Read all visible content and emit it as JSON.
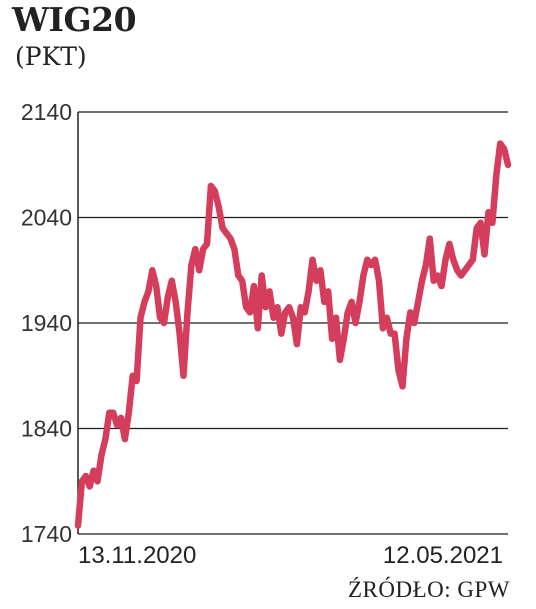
{
  "header": {
    "title": "WIG20",
    "unit": "(PKT)"
  },
  "footer": {
    "source": "ŹRÓDŁO: GPW"
  },
  "chart_data": {
    "type": "line",
    "title": "WIG20",
    "ylabel": "(PKT)",
    "xlabel": "",
    "ylim": [
      1740,
      2140
    ],
    "yticks": [
      1740,
      1840,
      1940,
      2040,
      2140
    ],
    "x_tick_labels": [
      "13.11.2020",
      "12.05.2021"
    ],
    "grid": true,
    "line_color": "#d43d5c",
    "series": [
      {
        "values": [
          1748,
          1790,
          1795,
          1785,
          1800,
          1790,
          1815,
          1830,
          1855,
          1855,
          1843,
          1850,
          1830,
          1855,
          1890,
          1885,
          1945,
          1960,
          1970,
          1990,
          1975,
          1945,
          1940,
          1965,
          1980,
          1960,
          1930,
          1890,
          1950,
          1995,
          2010,
          1990,
          2010,
          2015,
          2070,
          2065,
          2050,
          2030,
          2025,
          2020,
          2010,
          1985,
          1980,
          1955,
          1950,
          1975,
          1935,
          1985,
          1955,
          1970,
          1945,
          1955,
          1930,
          1950,
          1955,
          1945,
          1920,
          1955,
          1950,
          1970,
          2000,
          1980,
          1990,
          1960,
          1970,
          1925,
          1945,
          1905,
          1925,
          1950,
          1960,
          1940,
          1960,
          1985,
          2000,
          1995,
          2000,
          1980,
          1935,
          1945,
          1930,
          1930,
          1895,
          1880,
          1925,
          1950,
          1940,
          1960,
          1980,
          1995,
          2020,
          1980,
          1985,
          1975,
          2000,
          2015,
          2000,
          1990,
          1985,
          1990,
          1995,
          2000,
          2030,
          2035,
          2005,
          2045,
          2035,
          2080,
          2110,
          2105,
          2090
        ]
      }
    ]
  }
}
